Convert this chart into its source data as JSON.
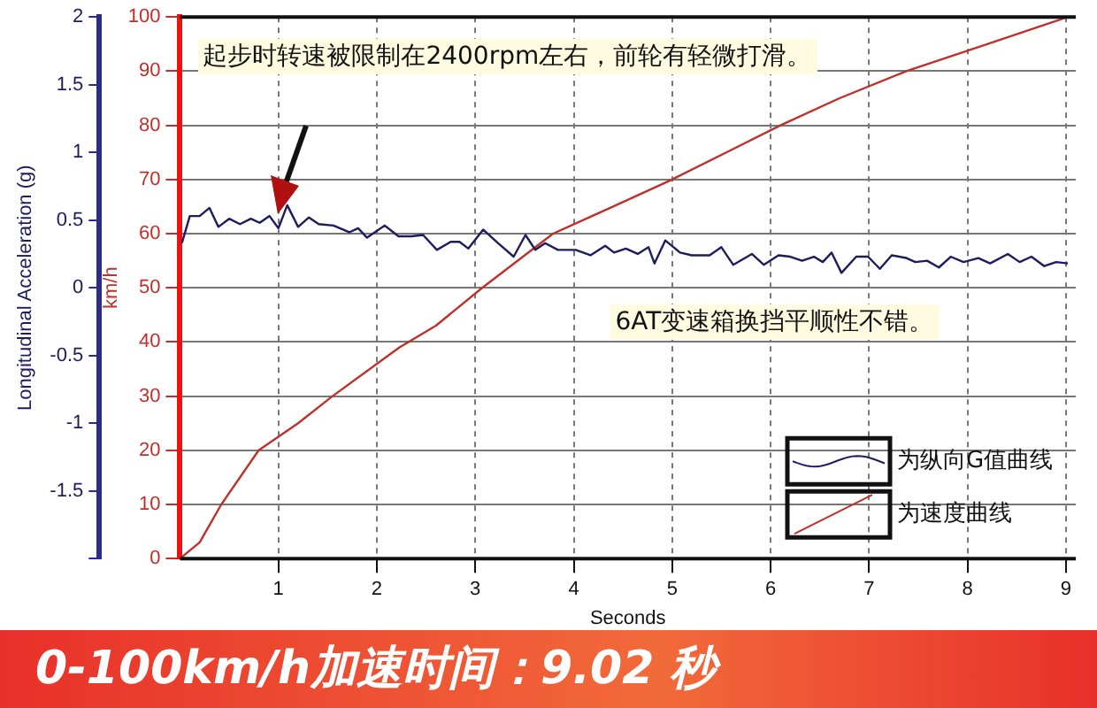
{
  "chart_data": {
    "type": "line",
    "xlabel": "Seconds",
    "ylabel": "Longitudinal Acceleration (g)",
    "y2label": "km/h",
    "xlim": [
      0,
      9.1
    ],
    "xticks": [
      1,
      2,
      3,
      4,
      5,
      6,
      7,
      8,
      9
    ],
    "ylim": [
      -2,
      2
    ],
    "yticks": [
      {
        "value": -2,
        "label": null
      },
      -1.5,
      -1,
      -0.5,
      0,
      0.5,
      1,
      1.5,
      2
    ],
    "y2lim": [
      0,
      100
    ],
    "y2ticks": [
      0,
      10,
      20,
      30,
      40,
      50,
      60,
      70,
      80,
      90,
      100
    ],
    "grid": true,
    "legend": "bottom right",
    "marker": "none",
    "line_style": "solid",
    "series": [
      {
        "name": "为纵向G值曲线",
        "color": "#1c1c5e",
        "axis": "y",
        "x": [
          0.02,
          0.1,
          0.2,
          0.3,
          0.39,
          0.5,
          0.61,
          0.72,
          0.81,
          0.91,
          1.0,
          1.09,
          1.2,
          1.31,
          1.41,
          1.56,
          1.72,
          1.81,
          1.9,
          2.08,
          2.22,
          2.35,
          2.47,
          2.61,
          2.75,
          2.84,
          2.93,
          3.08,
          3.23,
          3.39,
          3.51,
          3.61,
          3.71,
          3.84,
          4.02,
          4.17,
          4.32,
          4.41,
          4.53,
          4.65,
          4.76,
          4.82,
          4.93,
          5.08,
          5.2,
          5.38,
          5.5,
          5.62,
          5.81,
          5.93,
          6.08,
          6.2,
          6.32,
          6.44,
          6.53,
          6.62,
          6.72,
          6.87,
          6.99,
          7.11,
          7.23,
          7.38,
          7.47,
          7.59,
          7.71,
          7.83,
          7.96,
          8.11,
          8.23,
          8.41,
          8.53,
          8.65,
          8.78,
          8.9,
          9.02
        ],
        "values": [
          0.33,
          0.53,
          0.53,
          0.59,
          0.45,
          0.51,
          0.47,
          0.51,
          0.48,
          0.53,
          0.44,
          0.61,
          0.45,
          0.52,
          0.47,
          0.46,
          0.41,
          0.44,
          0.37,
          0.46,
          0.38,
          0.38,
          0.39,
          0.28,
          0.34,
          0.34,
          0.29,
          0.43,
          0.33,
          0.23,
          0.39,
          0.28,
          0.33,
          0.28,
          0.28,
          0.24,
          0.31,
          0.26,
          0.29,
          0.25,
          0.3,
          0.18,
          0.35,
          0.26,
          0.24,
          0.24,
          0.3,
          0.17,
          0.25,
          0.17,
          0.24,
          0.23,
          0.2,
          0.23,
          0.19,
          0.26,
          0.11,
          0.23,
          0.23,
          0.14,
          0.24,
          0.22,
          0.19,
          0.2,
          0.15,
          0.23,
          0.19,
          0.22,
          0.18,
          0.25,
          0.19,
          0.23,
          0.16,
          0.19,
          0.18
        ]
      },
      {
        "name": "为速度曲线",
        "color": "#c0302a",
        "axis": "y2",
        "x": [
          0,
          0.2,
          0.42,
          0.8,
          1.2,
          1.55,
          2.23,
          2.6,
          3.07,
          3.79,
          4.4,
          5.0,
          5.55,
          6.1,
          6.7,
          7.38,
          8.2,
          9.02
        ],
        "values": [
          0,
          3,
          10,
          20,
          25,
          30,
          39,
          43,
          50,
          60,
          65,
          70,
          75,
          80,
          85,
          90,
          95,
          100
        ]
      }
    ],
    "annotations": [
      "起步时转速被限制在2400rpm左右，前轮有轻微打滑。",
      "6AT变速箱换挡平顺性不错。",
      "0-100km/h加速时间：9.02 秒"
    ]
  }
}
